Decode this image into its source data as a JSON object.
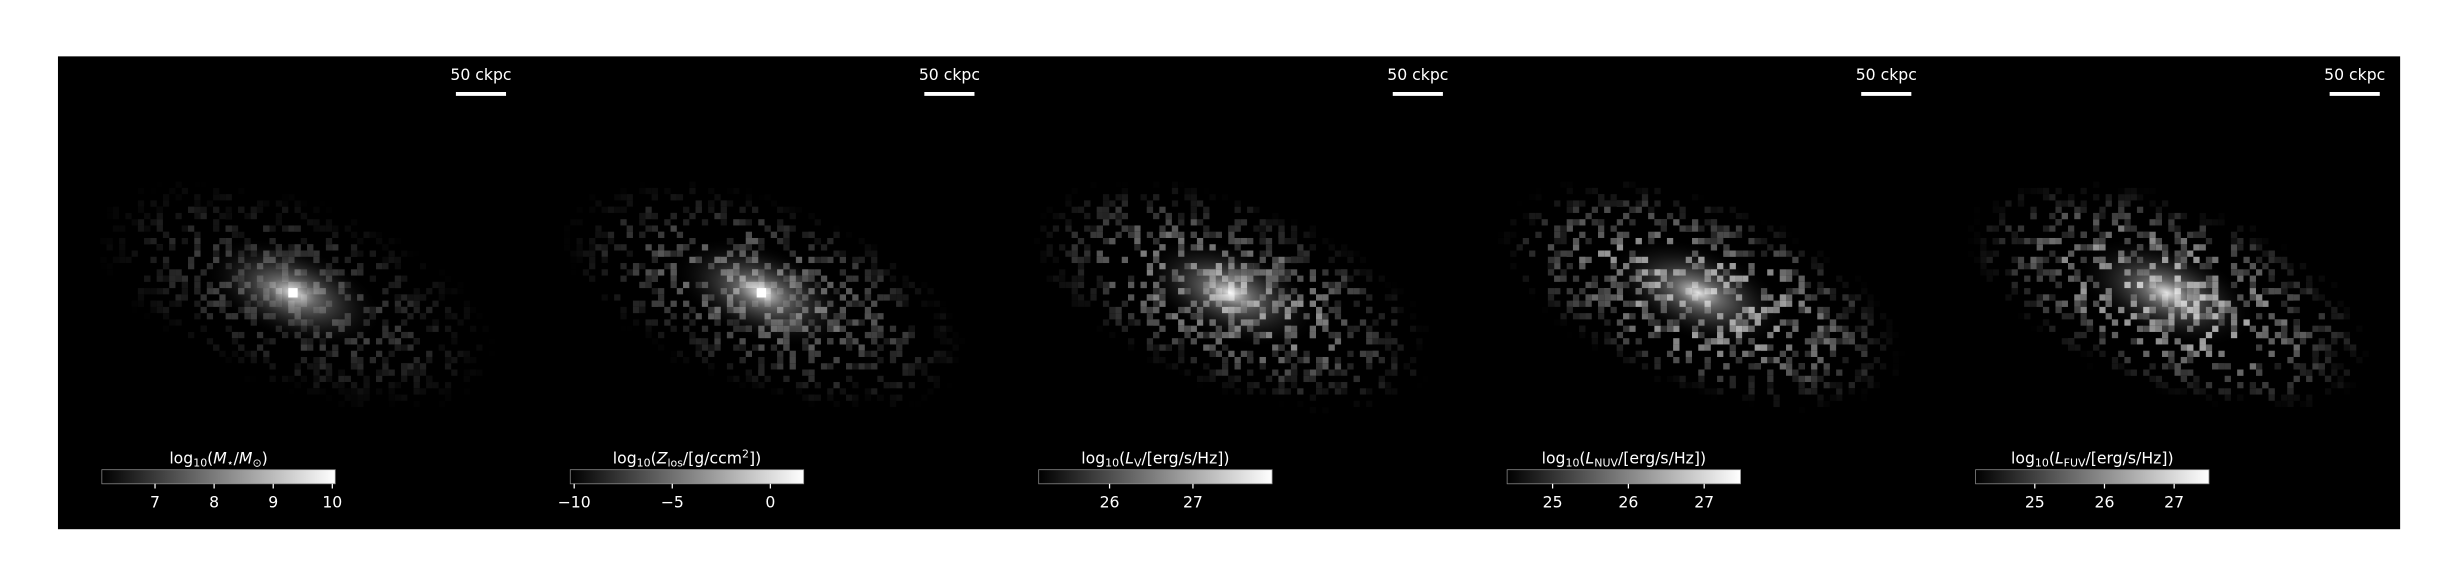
{
  "panels": [
    {
      "scale_bar": "50 ckpc",
      "colorbar": {
        "label": [
          {
            "text": "log"
          },
          {
            "text": "10",
            "style": "sub"
          },
          {
            "text": "("
          },
          {
            "text": "M",
            "style": "italic"
          },
          {
            "text": "⋆",
            "style": "sub"
          },
          {
            "text": "/"
          },
          {
            "text": "M",
            "style": "italic"
          },
          {
            "text": "⊙",
            "style": "sub"
          },
          {
            "text": ")"
          }
        ],
        "lim": [
          6.1,
          10.05
        ],
        "ticks": [
          7,
          8,
          9,
          10
        ]
      }
    },
    {
      "scale_bar": "50 ckpc",
      "colorbar": {
        "label": [
          {
            "text": "log"
          },
          {
            "text": "10",
            "style": "sub"
          },
          {
            "text": "("
          },
          {
            "text": "Z",
            "style": "italic"
          },
          {
            "text": "los",
            "style": "sub"
          },
          {
            "text": "/[g/ccm"
          },
          {
            "text": "2",
            "style": "sup"
          },
          {
            "text": "])"
          }
        ],
        "lim": [
          -10.2,
          1.7
        ],
        "ticks": [
          {
            "value": -10,
            "label": "−10"
          },
          {
            "value": -5,
            "label": "−5"
          },
          0
        ]
      }
    },
    {
      "scale_bar": "50 ckpc",
      "colorbar": {
        "label": [
          {
            "text": "log"
          },
          {
            "text": "10",
            "style": "sub"
          },
          {
            "text": "("
          },
          {
            "text": "L",
            "style": "italic"
          },
          {
            "text": "V",
            "style": "sub"
          },
          {
            "text": "/[erg/s/Hz])"
          }
        ],
        "lim": [
          25.15,
          27.95
        ],
        "ticks": [
          26,
          27
        ]
      }
    },
    {
      "scale_bar": "50 ckpc",
      "colorbar": {
        "label": [
          {
            "text": "log"
          },
          {
            "text": "10",
            "style": "sub"
          },
          {
            "text": "("
          },
          {
            "text": "L",
            "style": "italic"
          },
          {
            "text": "NUV",
            "style": "sub"
          },
          {
            "text": "/[erg/s/Hz])"
          }
        ],
        "lim": [
          24.4,
          27.48
        ],
        "ticks": [
          25,
          26,
          27
        ]
      }
    },
    {
      "scale_bar": "50 ckpc",
      "colorbar": {
        "label": [
          {
            "text": "log"
          },
          {
            "text": "10",
            "style": "sub"
          },
          {
            "text": "("
          },
          {
            "text": "L",
            "style": "italic"
          },
          {
            "text": "FUV",
            "style": "sub"
          },
          {
            "text": "/[erg/s/Hz])"
          }
        ],
        "lim": [
          24.15,
          27.5
        ],
        "ticks": [
          25,
          26,
          27
        ]
      }
    }
  ]
}
